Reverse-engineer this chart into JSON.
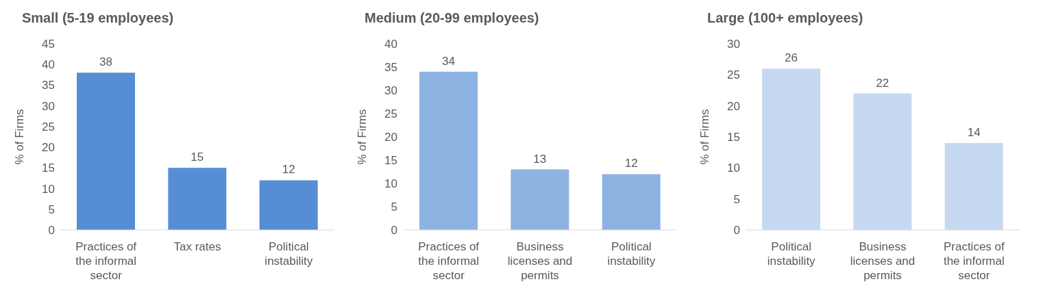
{
  "chart_data": [
    {
      "type": "bar",
      "title": "Small (5-19 employees)",
      "ylabel": "% of Firms",
      "categories": [
        "Practices of the informal sector",
        "Tax rates",
        "Political instability"
      ],
      "values": [
        38,
        15,
        12
      ],
      "color": "#558ed5",
      "ylim": [
        0,
        45
      ],
      "yticks": [
        0,
        5,
        10,
        15,
        20,
        25,
        30,
        35,
        40,
        45
      ],
      "data_labels": true,
      "grid": false,
      "legend": false
    },
    {
      "type": "bar",
      "title": "Medium (20-99 employees)",
      "ylabel": "% of Firms",
      "categories": [
        "Practices of the informal sector",
        "Business licenses and permits",
        "Political instability"
      ],
      "values": [
        34,
        13,
        12
      ],
      "color": "#8db3e2",
      "ylim": [
        0,
        40
      ],
      "yticks": [
        0,
        5,
        10,
        15,
        20,
        25,
        30,
        35,
        40
      ],
      "data_labels": true,
      "grid": false,
      "legend": false
    },
    {
      "type": "bar",
      "title": "Large (100+ employees)",
      "ylabel": "% of Firms",
      "categories": [
        "Political instability",
        "Business licenses and permits",
        "Practices of the informal sector"
      ],
      "values": [
        26,
        22,
        14
      ],
      "color": "#c6d9f1",
      "ylim": [
        0,
        30
      ],
      "yticks": [
        0,
        5,
        10,
        15,
        20,
        25,
        30
      ],
      "data_labels": true,
      "grid": false,
      "legend": false
    }
  ]
}
